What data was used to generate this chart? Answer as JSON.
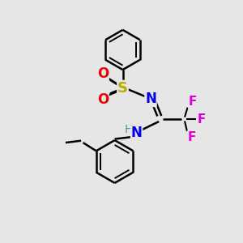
{
  "background_color": "#e6e6e6",
  "atom_colors": {
    "C": "#000000",
    "H": "#4a9a8a",
    "N": "#0000ee",
    "O": "#ee0000",
    "S": "#bbaa00",
    "F": "#dd00dd"
  },
  "bond_color": "#000000",
  "figsize": [
    3.0,
    3.0
  ],
  "dpi": 100,
  "xlim": [
    0,
    10
  ],
  "ylim": [
    0,
    10
  ]
}
